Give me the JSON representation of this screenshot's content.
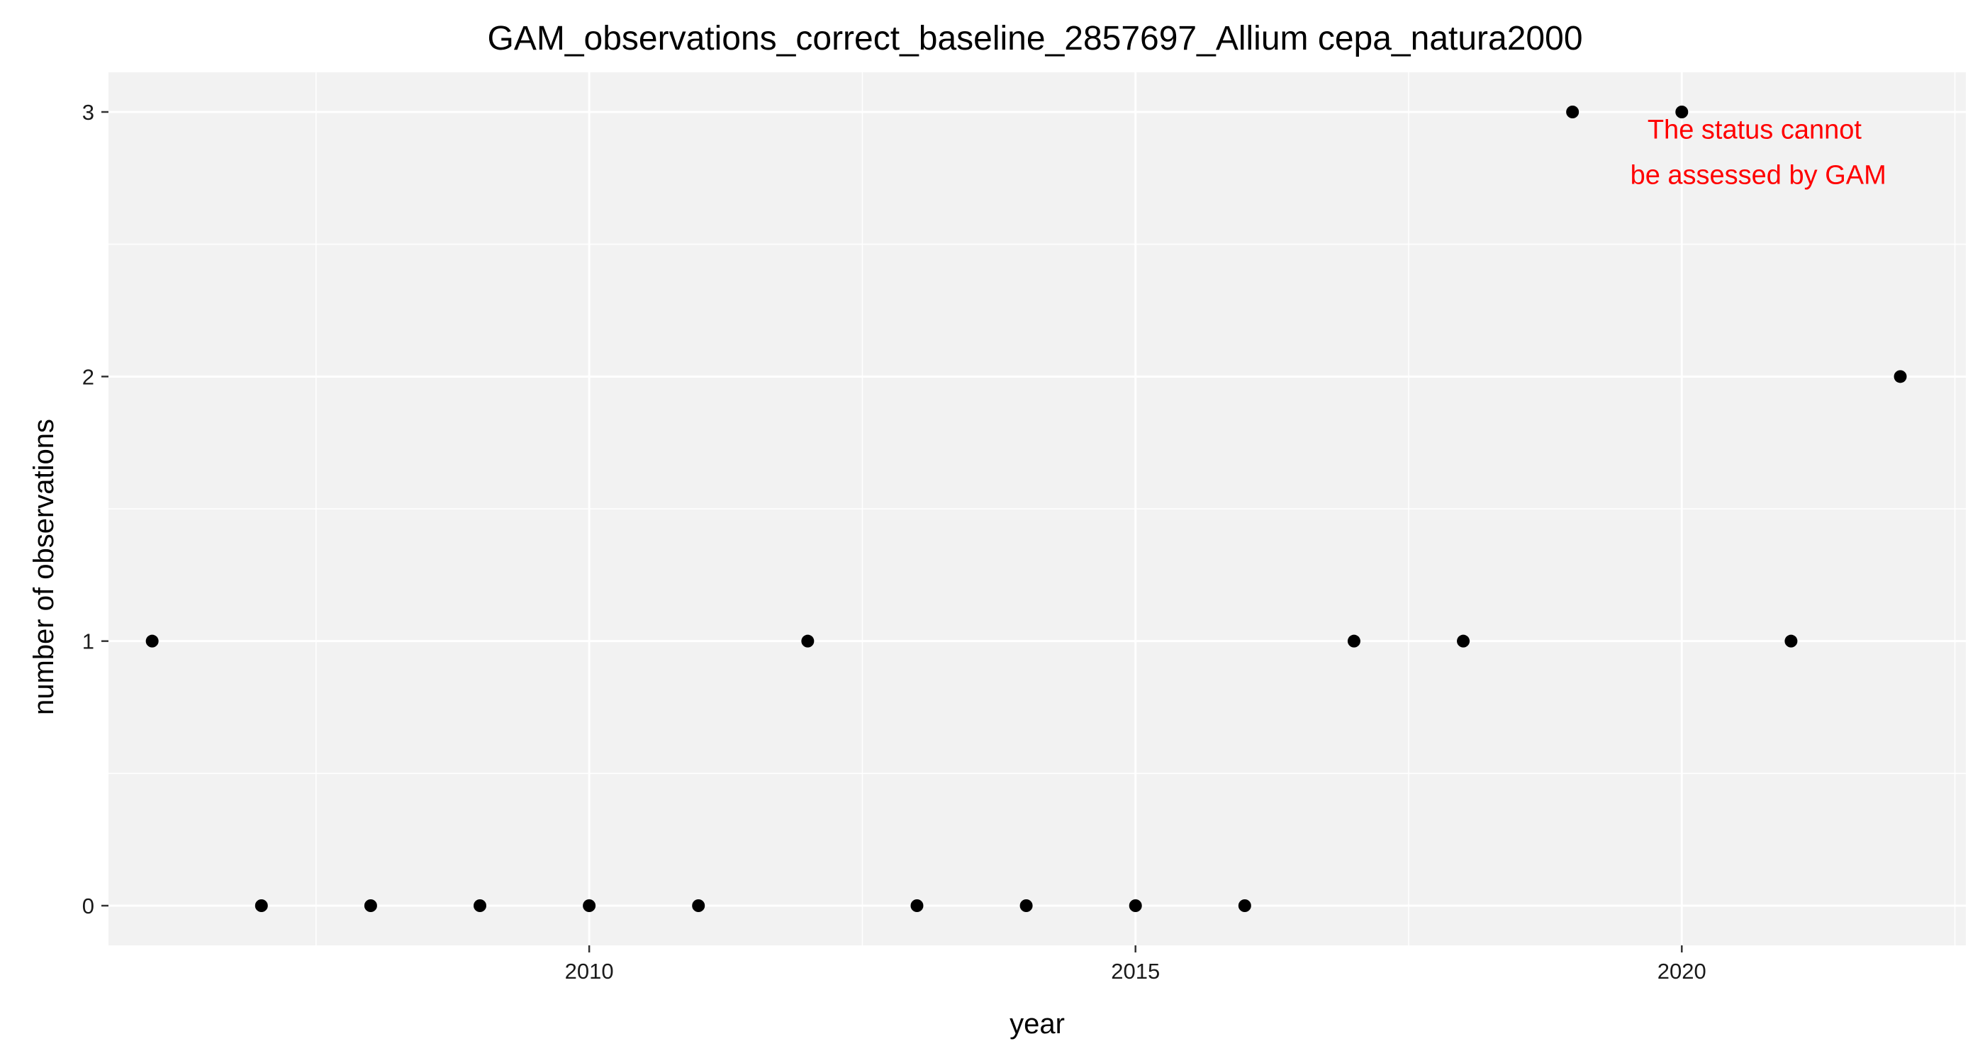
{
  "chart_data": {
    "type": "scatter",
    "title": "GAM_observations_correct_baseline_2857697_Allium cepa_natura2000",
    "xlabel": "year",
    "ylabel": "number of observations",
    "xlim": [
      2005.6,
      2022.6
    ],
    "ylim": [
      -0.15,
      3.15
    ],
    "x_ticks": [
      2010,
      2015,
      2020
    ],
    "x_minor_ticks": [
      2007.5,
      2012.5,
      2017.5,
      2022.5
    ],
    "y_ticks": [
      0,
      1,
      2,
      3
    ],
    "y_minor_ticks": [
      0.5,
      1.5,
      2.5
    ],
    "grid": true,
    "legend": "none",
    "panel_background": "#f2f2f2",
    "grid_color": "#ffffff",
    "point_color": "#000000",
    "x": [
      2006,
      2007,
      2008,
      2009,
      2010,
      2011,
      2012,
      2013,
      2014,
      2015,
      2016,
      2017,
      2018,
      2019,
      2020,
      2021,
      2022
    ],
    "y": [
      1,
      0,
      0,
      0,
      0,
      0,
      1,
      0,
      0,
      0,
      0,
      1,
      1,
      3,
      3,
      1,
      2
    ],
    "annotation": {
      "lines": [
        "The status cannot",
        "be assessed by GAM"
      ],
      "color": "#ff0000",
      "x": 2020.7,
      "y": 2.9
    }
  }
}
